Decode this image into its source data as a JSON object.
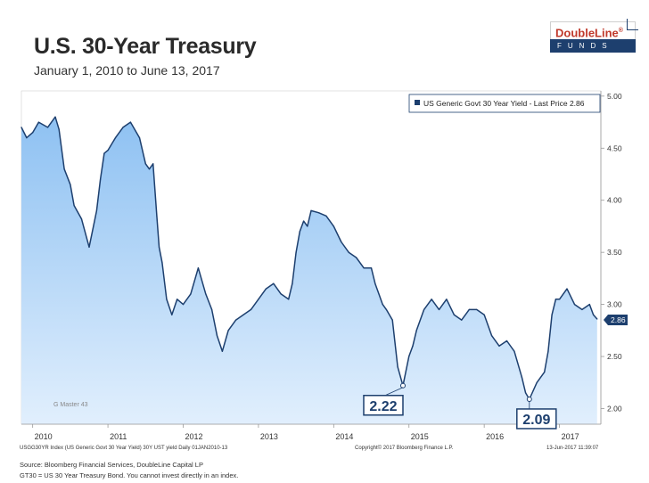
{
  "header": {
    "title": "U.S. 30-Year Treasury",
    "subtitle": "January 1, 2010 to June 13, 2017"
  },
  "logo": {
    "name": "DoubleLine",
    "tagline": "FUNDS",
    "registered_mark": "®",
    "colors": {
      "red": "#c0392b",
      "navy": "#1d3f6e"
    }
  },
  "chart_data": {
    "type": "area",
    "legend": "US Generic Govt 30 Year Yield - Last Price 2.86",
    "legend_position": "top-right",
    "watermark": "G Master 43",
    "x_tick_labels": [
      "2010",
      "2011",
      "2012",
      "2013",
      "2014",
      "2015",
      "2016",
      "2017"
    ],
    "y_ticks": [
      2.0,
      2.5,
      3.0,
      3.5,
      4.0,
      4.5,
      5.0
    ],
    "y_tick_labels": [
      "2.00",
      "2.50",
      "3.00",
      "3.50",
      "4.00",
      "4.50",
      "5.00"
    ],
    "ylim": [
      1.85,
      5.05
    ],
    "xlim": [
      2009.85,
      2017.55
    ],
    "last_price_label": "2.86",
    "grid": false,
    "colors": {
      "line": "#1d3f6e",
      "fill_top": "#8ec1f2",
      "fill_bottom": "#e1effd",
      "plot_bg": "#ffffff"
    },
    "series": [
      {
        "x": [
          2009.85,
          2009.92,
          2010.0,
          2010.08,
          2010.2,
          2010.3,
          2010.35,
          2010.42,
          2010.5,
          2010.55,
          2010.65,
          2010.75,
          2010.85,
          2010.9,
          2010.95,
          2011.0,
          2011.1,
          2011.2,
          2011.3,
          2011.42,
          2011.5,
          2011.55,
          2011.6,
          2011.65,
          2011.68,
          2011.72,
          2011.78,
          2011.85,
          2011.92,
          2012.0,
          2012.1,
          2012.2,
          2012.3,
          2012.38,
          2012.45,
          2012.52,
          2012.6,
          2012.7,
          2012.8,
          2012.9,
          2013.0,
          2013.1,
          2013.2,
          2013.3,
          2013.4,
          2013.45,
          2013.5,
          2013.55,
          2013.6,
          2013.65,
          2013.7,
          2013.8,
          2013.9,
          2014.0,
          2014.1,
          2014.2,
          2014.3,
          2014.4,
          2014.5,
          2014.55,
          2014.6,
          2014.65,
          2014.7,
          2014.78,
          2014.85,
          2014.92,
          2015.0,
          2015.05,
          2015.1,
          2015.2,
          2015.3,
          2015.4,
          2015.5,
          2015.6,
          2015.7,
          2015.8,
          2015.9,
          2016.0,
          2016.1,
          2016.2,
          2016.3,
          2016.4,
          2016.5,
          2016.55,
          2016.6,
          2016.7,
          2016.8,
          2016.85,
          2016.9,
          2016.95,
          2017.0,
          2017.1,
          2017.2,
          2017.3,
          2017.4,
          2017.45,
          2017.5
        ],
        "y": [
          4.7,
          4.6,
          4.65,
          4.75,
          4.7,
          4.8,
          4.68,
          4.3,
          4.15,
          3.95,
          3.82,
          3.55,
          3.9,
          4.2,
          4.45,
          4.48,
          4.6,
          4.7,
          4.75,
          4.6,
          4.35,
          4.3,
          4.35,
          3.85,
          3.55,
          3.4,
          3.05,
          2.9,
          3.05,
          3.0,
          3.1,
          3.35,
          3.1,
          2.95,
          2.7,
          2.55,
          2.75,
          2.85,
          2.9,
          2.95,
          3.05,
          3.15,
          3.2,
          3.1,
          3.05,
          3.2,
          3.5,
          3.7,
          3.8,
          3.75,
          3.9,
          3.88,
          3.85,
          3.75,
          3.6,
          3.5,
          3.45,
          3.35,
          3.35,
          3.2,
          3.1,
          3.0,
          2.95,
          2.85,
          2.4,
          2.22,
          2.5,
          2.6,
          2.75,
          2.95,
          3.05,
          2.95,
          3.05,
          2.9,
          2.85,
          2.95,
          2.95,
          2.9,
          2.7,
          2.6,
          2.65,
          2.55,
          2.3,
          2.15,
          2.09,
          2.25,
          2.35,
          2.55,
          2.9,
          3.05,
          3.05,
          3.15,
          3.0,
          2.95,
          3.0,
          2.9,
          2.86
        ]
      }
    ],
    "annotations": [
      {
        "x": 2014.92,
        "y": 2.22,
        "label": "2.22"
      },
      {
        "x": 2016.6,
        "y": 2.09,
        "label": "2.09"
      }
    ]
  },
  "chart_footer": {
    "left": "USGG30YR Index (US Generic Govt 30 Year Yield) 30Y UST yield Daily 01JAN2010-13",
    "middle": "Copyright© 2017 Bloomberg Finance L.P.",
    "right": "13-Jun-2017 11:39:07"
  },
  "footnotes": {
    "source": "Source: Bloomberg Financial Services, DoubleLine Capital LP",
    "definition": "GT30 = US 30 Year Treasury Bond. You cannot invest directly in an index."
  }
}
